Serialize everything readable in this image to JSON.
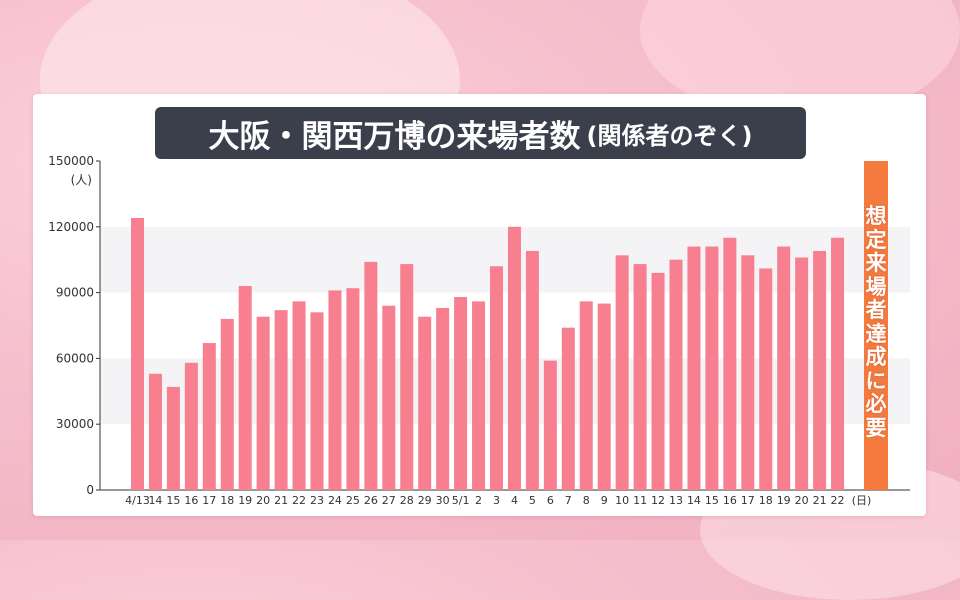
{
  "title": {
    "main": "大阪・関西万博の来場者数",
    "sub": "(関係者のぞく)"
  },
  "chart_data": {
    "type": "bar",
    "ylabel": "(人)",
    "ylim": [
      0,
      150000
    ],
    "yticks": [
      0,
      30000,
      60000,
      90000,
      120000,
      150000
    ],
    "grid": "horizontal bands",
    "categories": [
      "4/13",
      "14",
      "15",
      "16",
      "17",
      "18",
      "19",
      "20",
      "21",
      "22",
      "23",
      "24",
      "25",
      "26",
      "27",
      "28",
      "29",
      "30",
      "5/1",
      "2",
      "3",
      "4",
      "5",
      "6",
      "7",
      "8",
      "9",
      "10",
      "11",
      "12",
      "13",
      "14",
      "15",
      "16",
      "17",
      "18",
      "19",
      "20",
      "21",
      "22"
    ],
    "x_end_label": "(日)",
    "series": [
      {
        "values": [
          124000,
          53000,
          47000,
          58000,
          67000,
          78000,
          93000,
          79000,
          82000,
          86000,
          81000,
          91000,
          92000,
          104000,
          84000,
          103000,
          79000,
          83000,
          88000,
          86000,
          102000,
          120000,
          109000,
          59000,
          74000,
          86000,
          85000,
          107000,
          103000,
          99000,
          105000,
          111000,
          111000,
          115000,
          107000,
          101000,
          111000,
          106000,
          109000,
          115000
        ]
      }
    ],
    "target": {
      "value": 150000,
      "label": "想定来場者達成に必要"
    },
    "colors": {
      "bar": "#f77f8f",
      "target": "#f47a3e",
      "band": "#f4f4f6"
    }
  }
}
